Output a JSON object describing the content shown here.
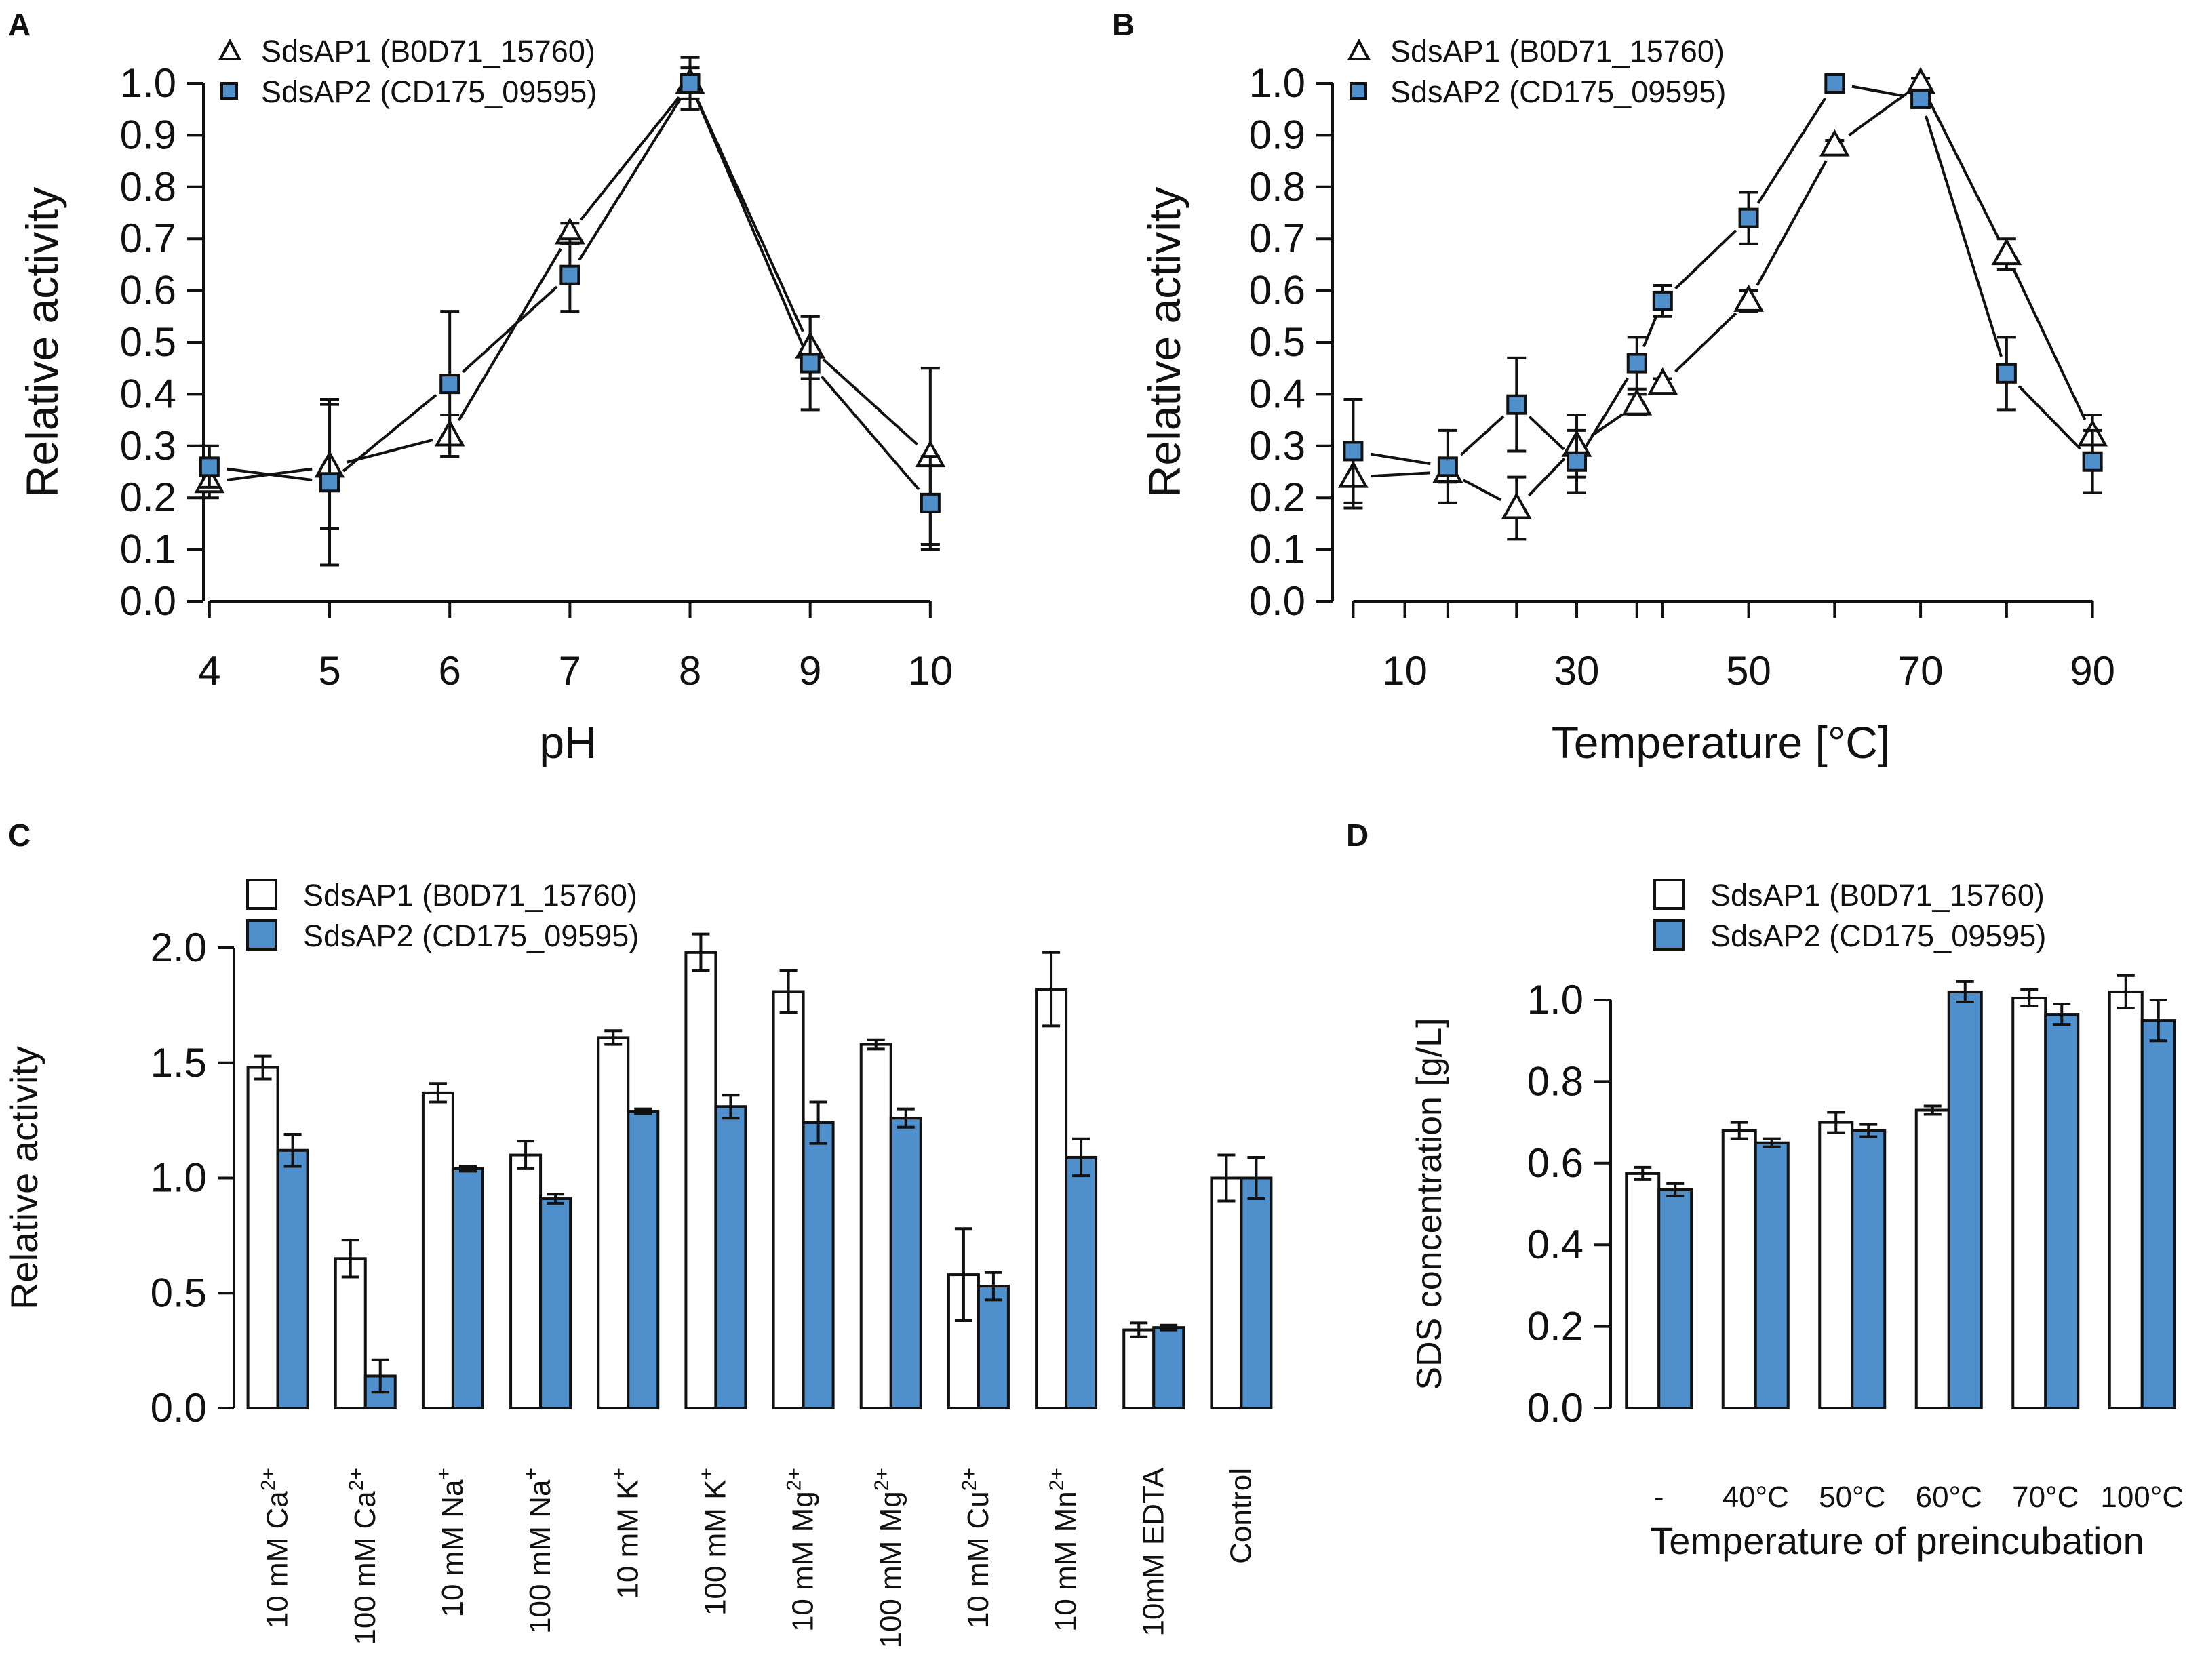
{
  "colors": {
    "series1_fill": "#ffffff",
    "series2_fill": "#4f8fcc",
    "ink": "#111111"
  },
  "chart_data": [
    {
      "panel": "A",
      "type": "line",
      "xlabel": "pH",
      "ylabel": "Relative activity",
      "x": [
        4,
        5,
        6,
        7,
        8,
        9,
        10
      ],
      "x_ticks": [
        "4",
        "5",
        "6",
        "7",
        "8",
        "9",
        "10"
      ],
      "xlim": [
        3.95,
        10.3
      ],
      "ylim": [
        0,
        1.0
      ],
      "y_ticks": [
        "0.0",
        "0.1",
        "0.2",
        "0.3",
        "0.4",
        "0.5",
        "0.6",
        "0.7",
        "0.8",
        "0.9",
        "1.0"
      ],
      "legend": [
        "SdsAP1 (B0D71_15760)",
        "SdsAP2 (CD175_09595)"
      ],
      "series": [
        {
          "name": "SdsAP1 (B0D71_15760)",
          "marker": "triangle",
          "values": [
            0.23,
            0.26,
            0.32,
            0.71,
            1.0,
            0.49,
            0.28
          ],
          "errors": [
            0.03,
            0.12,
            0.04,
            0.02,
            0.05,
            0.06,
            0.17
          ]
        },
        {
          "name": "SdsAP2 (CD175_09595)",
          "marker": "square",
          "values": [
            0.26,
            0.23,
            0.42,
            0.63,
            1.0,
            0.46,
            0.19
          ],
          "errors": [
            0.04,
            0.16,
            0.14,
            0.07,
            0.03,
            0.09,
            0.09
          ]
        }
      ]
    },
    {
      "panel": "B",
      "type": "line",
      "xlabel": "Temperature [°C]",
      "ylabel": "Relative activity",
      "x": [
        4,
        15,
        23,
        30,
        37,
        40,
        50,
        60,
        70,
        80,
        90
      ],
      "x_ticks": [
        "10",
        "30",
        "50",
        "70",
        "90"
      ],
      "x_tick_values": [
        10,
        30,
        50,
        70,
        90
      ],
      "x_minor_ticks": [
        20,
        40,
        60,
        80
      ],
      "xlim": [
        1.6,
        93.5
      ],
      "ylim": [
        0,
        1.0
      ],
      "y_ticks": [
        "0.0",
        "0.1",
        "0.2",
        "0.3",
        "0.4",
        "0.5",
        "0.6",
        "0.7",
        "0.8",
        "0.9",
        "1.0"
      ],
      "legend": [
        "SdsAP1 (B0D71_15760)",
        "SdsAP2 (CD175_09595)"
      ],
      "series": [
        {
          "name": "SdsAP1 (B0D71_15760)",
          "marker": "triangle",
          "values": [
            0.24,
            0.25,
            0.18,
            0.3,
            0.38,
            0.42,
            0.58,
            0.88,
            1.0,
            0.67,
            0.32
          ],
          "errors": [
            0.06,
            0.02,
            0.06,
            0.06,
            0.02,
            0.01,
            0.02,
            0.01,
            0.01,
            0.03,
            0.04
          ]
        },
        {
          "name": "SdsAP2 (CD175_09595)",
          "marker": "square",
          "values": [
            0.29,
            0.26,
            0.38,
            0.27,
            0.46,
            0.58,
            0.74,
            1.0,
            0.97,
            0.44,
            0.27
          ],
          "errors": [
            0.1,
            0.07,
            0.09,
            0.06,
            0.05,
            0.03,
            0.05,
            0.01,
            0.01,
            0.07,
            0.06
          ]
        }
      ]
    },
    {
      "panel": "C",
      "type": "bar",
      "xlabel": "",
      "ylabel": "Relative activity",
      "categories": [
        {
          "prefix": "10 mM Ca",
          "sup": "2+"
        },
        {
          "prefix": "100 mM Ca",
          "sup": "2+"
        },
        {
          "prefix": "10 mM Na",
          "sup": "+"
        },
        {
          "prefix": "100 mM Na",
          "sup": "+"
        },
        {
          "prefix": "10 mM K",
          "sup": "+"
        },
        {
          "prefix": "100 mM K",
          "sup": "+"
        },
        {
          "prefix": "10 mM Mg",
          "sup": "2+"
        },
        {
          "prefix": "100 mM Mg",
          "sup": "2+"
        },
        {
          "prefix": "10 mM Cu",
          "sup": "2+"
        },
        {
          "prefix": "10 mM Mn",
          "sup": "2+"
        },
        {
          "prefix": "10mM EDTA",
          "sup": ""
        },
        {
          "prefix": "Control",
          "sup": ""
        }
      ],
      "ylim": [
        0,
        2.0
      ],
      "y_ticks": [
        "0.0",
        "0.5",
        "1.0",
        "1.5",
        "2.0"
      ],
      "legend": [
        "SdsAP1 (B0D71_15760)",
        "SdsAP2 (CD175_09595)"
      ],
      "series": [
        {
          "name": "SdsAP1 (B0D71_15760)",
          "values": [
            1.48,
            0.65,
            1.37,
            1.1,
            1.61,
            1.98,
            1.81,
            1.58,
            0.58,
            1.82,
            0.34,
            1.0
          ],
          "errors": [
            0.05,
            0.08,
            0.04,
            0.06,
            0.03,
            0.08,
            0.09,
            0.02,
            0.2,
            0.16,
            0.03,
            0.1
          ]
        },
        {
          "name": "SdsAP2 (CD175_09595)",
          "values": [
            1.12,
            0.14,
            1.04,
            0.91,
            1.29,
            1.31,
            1.24,
            1.26,
            0.53,
            1.09,
            0.35,
            1.0
          ],
          "errors": [
            0.07,
            0.07,
            0.01,
            0.02,
            0.01,
            0.05,
            0.09,
            0.04,
            0.06,
            0.08,
            0.01,
            0.09
          ]
        }
      ]
    },
    {
      "panel": "D",
      "type": "bar",
      "xlabel": "Temperature of preincubation",
      "ylabel": "SDS concentration [g/L]",
      "categories": [
        "-",
        "40°C",
        "50°C",
        "60°C",
        "70°C",
        "100°C"
      ],
      "ylim": [
        0,
        1.0
      ],
      "y_ticks": [
        "0.0",
        "0.2",
        "0.4",
        "0.6",
        "0.8",
        "1.0"
      ],
      "legend": [
        "SdsAP1 (B0D71_15760)",
        "SdsAP2 (CD175_09595)"
      ],
      "series": [
        {
          "name": "SdsAP1 (B0D71_15760)",
          "values": [
            0.575,
            0.68,
            0.7,
            0.73,
            1.005,
            1.02
          ],
          "errors": [
            0.015,
            0.02,
            0.025,
            0.01,
            0.02,
            0.04
          ]
        },
        {
          "name": "SdsAP2 (CD175_09595)",
          "values": [
            0.535,
            0.65,
            0.68,
            1.02,
            0.965,
            0.95
          ],
          "errors": [
            0.015,
            0.01,
            0.015,
            0.025,
            0.025,
            0.05
          ]
        }
      ]
    }
  ]
}
